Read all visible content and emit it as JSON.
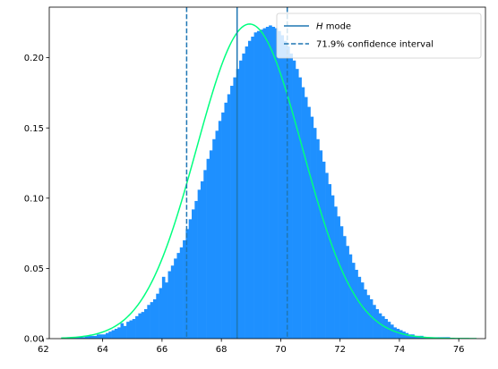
{
  "chart_data": {
    "type": "bar",
    "title": "",
    "xlabel": "",
    "ylabel": "",
    "xlim": [
      62.2,
      76.9
    ],
    "ylim": [
      0,
      0.236
    ],
    "grid": false,
    "legend_position": "top-right",
    "x_ticks": [
      62,
      64,
      66,
      68,
      70,
      72,
      74,
      76
    ],
    "x_tick_labels": [
      "62",
      "64",
      "66",
      "68",
      "70",
      "72",
      "74",
      "76"
    ],
    "y_ticks": [
      0.0,
      0.05,
      0.1,
      0.15,
      0.2
    ],
    "y_tick_labels": [
      "0.00",
      "0.05",
      "0.10",
      "0.15",
      "0.20"
    ],
    "histogram": {
      "color": "#1e90ff",
      "bin_start": 62.8,
      "bin_width": 0.1,
      "heights": [
        0.001,
        0.001,
        0.001,
        0.001,
        0.001,
        0.001,
        0.002,
        0.002,
        0.002,
        0.002,
        0.003,
        0.003,
        0.003,
        0.004,
        0.005,
        0.006,
        0.007,
        0.008,
        0.011,
        0.009,
        0.012,
        0.013,
        0.014,
        0.016,
        0.018,
        0.019,
        0.021,
        0.024,
        0.026,
        0.028,
        0.032,
        0.036,
        0.044,
        0.04,
        0.048,
        0.052,
        0.057,
        0.061,
        0.065,
        0.07,
        0.078,
        0.085,
        0.092,
        0.098,
        0.106,
        0.112,
        0.12,
        0.128,
        0.134,
        0.142,
        0.148,
        0.155,
        0.161,
        0.168,
        0.174,
        0.18,
        0.186,
        0.192,
        0.198,
        0.203,
        0.208,
        0.212,
        0.215,
        0.218,
        0.219,
        0.22,
        0.221,
        0.222,
        0.223,
        0.222,
        0.221,
        0.219,
        0.216,
        0.212,
        0.208,
        0.203,
        0.198,
        0.192,
        0.186,
        0.179,
        0.172,
        0.165,
        0.158,
        0.15,
        0.142,
        0.134,
        0.126,
        0.118,
        0.11,
        0.102,
        0.094,
        0.087,
        0.08,
        0.073,
        0.066,
        0.06,
        0.054,
        0.049,
        0.044,
        0.04,
        0.035,
        0.031,
        0.028,
        0.024,
        0.021,
        0.018,
        0.016,
        0.014,
        0.012,
        0.01,
        0.008,
        0.007,
        0.006,
        0.005,
        0.004,
        0.003,
        0.003,
        0.002,
        0.002,
        0.002,
        0.001,
        0.001,
        0.001,
        0.001,
        0.001,
        0.001,
        0.001,
        0.001,
        0.001
      ]
    },
    "density_curve": {
      "color": "#00ff7f",
      "mean": 68.95,
      "sd": 1.78,
      "peak": 0.224,
      "x_range": [
        62.6,
        76.6
      ]
    },
    "mode_line": {
      "x": 68.53,
      "color": "#1f77b4"
    },
    "interval_lines": {
      "x": [
        66.83,
        70.22
      ],
      "color": "#1f77b4"
    },
    "legend": [
      {
        "label_italic": "H",
        "label_rest": " mode",
        "style": "solid"
      },
      {
        "label_italic": "",
        "label_rest": "71.9% confidence interval",
        "style": "dashed"
      }
    ]
  }
}
